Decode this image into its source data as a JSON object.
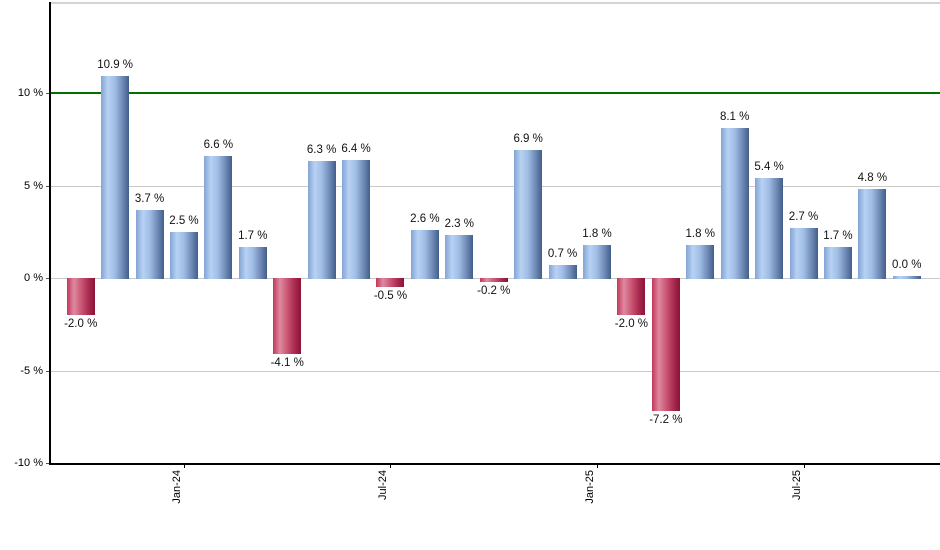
{
  "chart_data": {
    "type": "bar",
    "title": "",
    "xlabel": "",
    "ylabel": "",
    "unit": "%",
    "values": [
      -2.0,
      10.9,
      3.7,
      2.5,
      6.6,
      1.7,
      -4.1,
      6.3,
      6.4,
      -0.5,
      2.6,
      2.3,
      -0.2,
      6.9,
      0.7,
      1.8,
      -2.0,
      -7.2,
      1.8,
      8.1,
      5.4,
      2.7,
      1.7,
      4.8,
      0.0
    ],
    "bar_labels": [
      "-2.0 %",
      "10.9 %",
      "3.7 %",
      "2.5 %",
      "6.6 %",
      "1.7 %",
      "-4.1 %",
      "6.3 %",
      "6.4 %",
      "-0.5 %",
      "2.6 %",
      "2.3 %",
      "-0.2 %",
      "6.9 %",
      "0.7 %",
      "1.8 %",
      "-2.0 %",
      "-7.2 %",
      "1.8 %",
      "8.1 %",
      "5.4 %",
      "2.7 %",
      "1.7 %",
      "4.8 %",
      "0.0 %"
    ],
    "x_ticks": [
      {
        "label": "Jan-24",
        "index": 3
      },
      {
        "label": "Jul-24",
        "index": 9
      },
      {
        "label": "Jan-25",
        "index": 15
      },
      {
        "label": "Jul-25",
        "index": 21
      }
    ],
    "y_ticks": [
      {
        "label": "10 %",
        "value": 10
      },
      {
        "label": "5 %",
        "value": 5
      },
      {
        "label": "0 %",
        "value": 0
      },
      {
        "label": "-5 %",
        "value": -5
      },
      {
        "label": "-10 %",
        "value": -10
      }
    ],
    "ylim": [
      -10,
      14.8
    ],
    "grid": true,
    "legend": "none",
    "reference_line": {
      "value": 10,
      "color": "#007000"
    },
    "colors": {
      "positive_gradient": [
        "#83a4d4",
        "#b8d2f4",
        "#9fbce4",
        "#6d88b4",
        "#415e89"
      ],
      "negative_gradient": [
        "#c23659",
        "#de8aa1",
        "#cb5875",
        "#a82a50",
        "#8a1336"
      ],
      "gridline": "#c9c9c9",
      "axis": "#000000",
      "reference": "#007000",
      "label_text": "#111111"
    }
  }
}
